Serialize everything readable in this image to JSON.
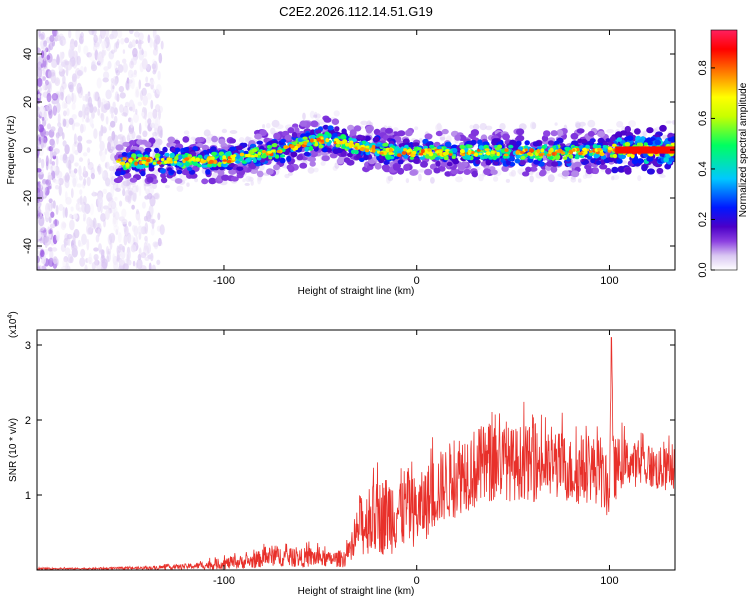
{
  "chart_data": [
    {
      "type": "heatmap",
      "title": "C2E2.2026.112.14.51.G19",
      "xlabel": "Height of straight line (km)",
      "ylabel": "Frequency (Hz)",
      "xlim": [
        -197,
        134
      ],
      "ylim": [
        -50,
        50
      ],
      "xticks": [
        -100,
        0,
        100
      ],
      "xtick_labels": [
        "-100",
        "0",
        "100"
      ],
      "yticks": [
        -40,
        -20,
        0,
        20,
        40
      ],
      "ytick_labels": [
        "-40",
        "-20",
        "0",
        "20",
        "40"
      ],
      "signal_start_x": -157,
      "trend": [
        {
          "x": -157,
          "y": -5
        },
        {
          "x": -100,
          "y": -4
        },
        {
          "x": -70,
          "y": 0
        },
        {
          "x": -45,
          "y": 5
        },
        {
          "x": -30,
          "y": 1
        },
        {
          "x": -10,
          "y": -1
        },
        {
          "x": 30,
          "y": -1
        },
        {
          "x": 60,
          "y": -1
        },
        {
          "x": 98,
          "y": -1
        },
        {
          "x": 102,
          "y": 0
        },
        {
          "x": 134,
          "y": 0
        }
      ],
      "colorbar": {
        "label": "Normalized spectral amplitude",
        "range": [
          0,
          0.95
        ],
        "ticks": [
          0.0,
          0.2,
          0.4,
          0.6,
          0.8
        ],
        "tick_labels": [
          "0.0",
          "0.2",
          "0.4",
          "0.6",
          "0.8"
        ],
        "colors": [
          "#ffffff",
          "#d9c6f2",
          "#8b3fe0",
          "#4b00c8",
          "#0018ff",
          "#00c8ff",
          "#00ff60",
          "#c8ff00",
          "#ffff00",
          "#ff8000",
          "#ff0000",
          "#ff2060"
        ]
      }
    },
    {
      "type": "line",
      "xlabel": "Height of straight line (km)",
      "ylabel": "SNR (10 * v/v)",
      "multiplier_label": "(x10",
      "multiplier_exponent": "4",
      "multiplier_close": ")",
      "xlim": [
        -197,
        134
      ],
      "ylim": [
        0,
        3.2
      ],
      "xticks": [
        -100,
        0,
        100
      ],
      "xtick_labels": [
        "-100",
        "0",
        "100"
      ],
      "yticks": [
        1,
        2,
        3
      ],
      "ytick_labels": [
        "1",
        "2",
        "3"
      ],
      "series": [
        {
          "name": "SNR",
          "color": "#e8302a",
          "x": [
            -197,
            -170,
            -140,
            -115,
            -100,
            -85,
            -75,
            -62,
            -55,
            -45,
            -38,
            -33,
            -30,
            -28,
            -25,
            -20,
            -15,
            -10,
            -5,
            0,
            5,
            10,
            15,
            20,
            25,
            30,
            35,
            40,
            45,
            50,
            55,
            60,
            65,
            70,
            75,
            80,
            85,
            90,
            95,
            98,
            100,
            101,
            102,
            104,
            106,
            110,
            115,
            120,
            125,
            130,
            134
          ],
          "y": [
            0.02,
            0.02,
            0.03,
            0.06,
            0.1,
            0.14,
            0.22,
            0.18,
            0.2,
            0.16,
            0.18,
            0.28,
            0.7,
            0.65,
            0.75,
            0.8,
            0.85,
            0.9,
            0.95,
            0.85,
            1.0,
            1.15,
            1.25,
            1.35,
            1.45,
            1.45,
            1.5,
            1.55,
            1.55,
            1.5,
            1.55,
            1.5,
            1.5,
            1.45,
            1.5,
            1.4,
            1.4,
            1.45,
            1.4,
            1.2,
            1.1,
            3.05,
            1.4,
            1.45,
            1.5,
            1.5,
            1.45,
            1.45,
            1.4,
            1.4,
            1.4
          ],
          "jitter_amplitude": [
            0.01,
            0.01,
            0.02,
            0.04,
            0.08,
            0.1,
            0.14,
            0.12,
            0.14,
            0.1,
            0.12,
            0.18,
            0.4,
            0.4,
            0.45,
            0.5,
            0.55,
            0.55,
            0.55,
            0.45,
            0.5,
            0.5,
            0.5,
            0.55,
            0.55,
            0.55,
            0.55,
            0.55,
            0.5,
            0.5,
            0.5,
            0.5,
            0.45,
            0.45,
            0.45,
            0.45,
            0.45,
            0.45,
            0.45,
            0.4,
            0.35,
            0.1,
            0.45,
            0.4,
            0.35,
            0.3,
            0.3,
            0.3,
            0.3,
            0.3,
            0.3
          ]
        }
      ]
    }
  ]
}
